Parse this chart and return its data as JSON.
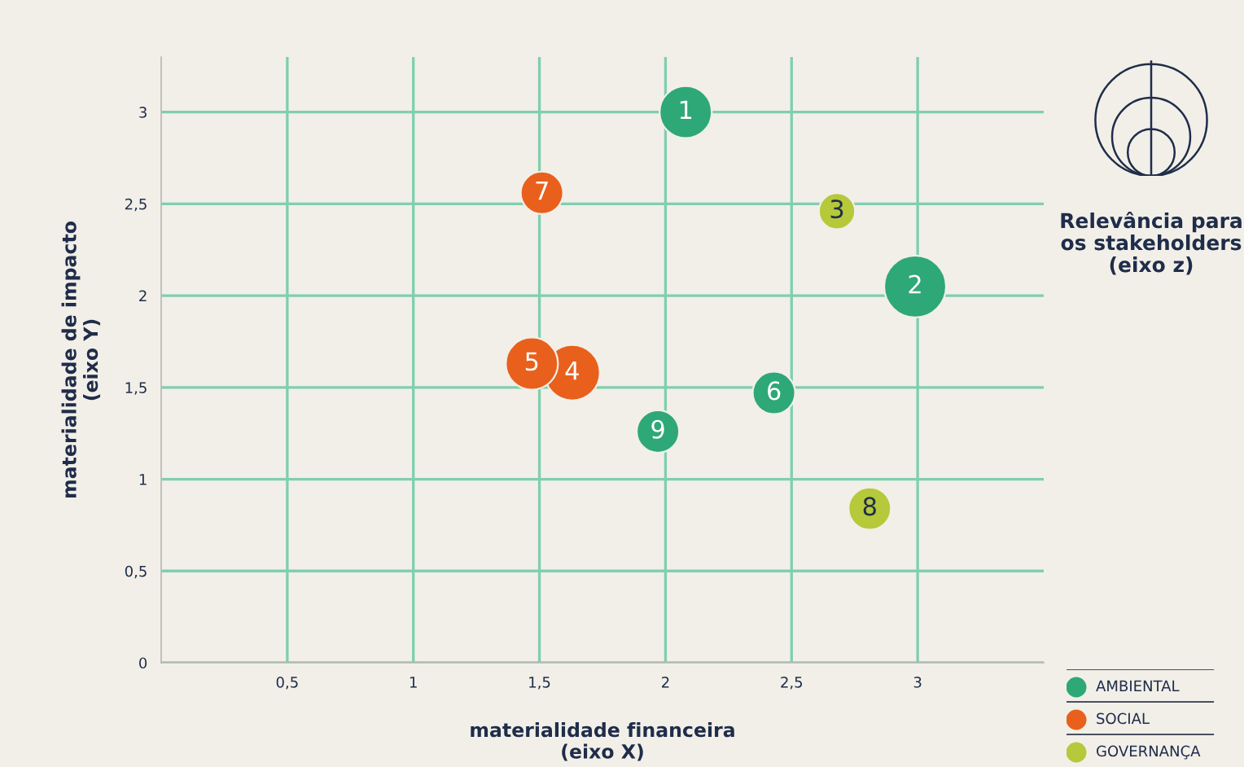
{
  "chart_data": {
    "type": "bubble",
    "xlabel": "materialidade financeira\n(eixo X)",
    "ylabel": "materialidade de impacto\n(eixo Y)",
    "xlim": [
      0,
      3.5
    ],
    "ylim": [
      0,
      3.3
    ],
    "xticks": [
      {
        "value": 0.5,
        "label": "0,5"
      },
      1,
      {
        "value": 1.5,
        "label": "1,5"
      },
      2,
      {
        "value": 2.5,
        "label": "2,5"
      },
      3
    ],
    "yticks": [
      0,
      {
        "value": 0.5,
        "label": "0,5"
      },
      1,
      {
        "value": 1.5,
        "label": "1,5"
      },
      2,
      {
        "value": 2.5,
        "label": "2,5"
      },
      3
    ],
    "grid": true,
    "legend": "bottom right",
    "series": [
      {
        "name": "AMBIENTAL",
        "color": "#2ea876",
        "x": [
          2.08,
          2.99,
          2.43,
          1.97
        ],
        "values": [
          3.0,
          2.05,
          1.47,
          1.26
        ],
        "sizes": [
          0.71,
          1,
          0.47,
          0.47
        ]
      },
      {
        "name": "SOCIAL",
        "color": "#e8601c",
        "x": [
          1.63,
          1.47,
          1.51
        ],
        "values": [
          1.58,
          1.63,
          2.56
        ],
        "sizes": [
          0.8,
          0.71,
          0.47
        ]
      },
      {
        "name": "GOVERNANÇA",
        "color": "#b5c93a",
        "x": [
          2.68,
          2.81
        ],
        "values": [
          2.46,
          0.84
        ],
        "sizes": [
          0.34,
          0.47
        ]
      }
    ],
    "annotations": [
      {
        "text": "1",
        "x": 2.08,
        "y": 3.0
      },
      {
        "text": "2",
        "x": 2.99,
        "y": 2.05
      },
      {
        "text": "3",
        "x": 2.68,
        "y": 2.46
      },
      {
        "text": "4",
        "x": 1.63,
        "y": 1.58
      },
      {
        "text": "5",
        "x": 1.47,
        "y": 1.63
      },
      {
        "text": "6",
        "x": 2.43,
        "y": 1.47
      },
      {
        "text": "7",
        "x": 1.51,
        "y": 2.56
      },
      {
        "text": "8",
        "x": 2.81,
        "y": 0.84
      },
      {
        "text": "9",
        "x": 1.97,
        "y": 1.26
      },
      "Relevância para\nos stakeholders\n(eixo z)"
    ]
  }
}
